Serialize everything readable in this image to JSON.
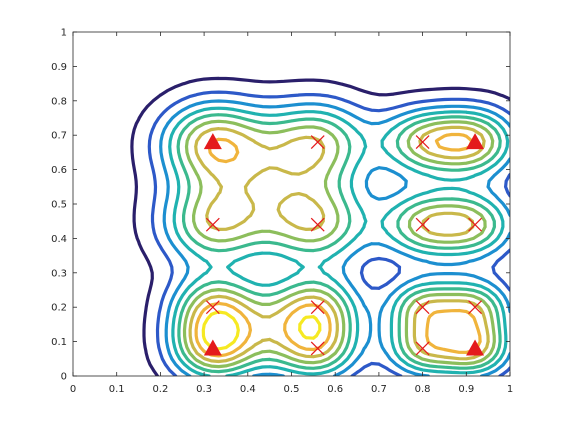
{
  "chart_data": {
    "type": "contour",
    "title": "",
    "xlabel": "",
    "ylabel": "",
    "xlim": [
      0,
      1
    ],
    "ylim": [
      0,
      1
    ],
    "grid": false,
    "xticks": [
      "0",
      "0.1",
      "0.2",
      "0.3",
      "0.4",
      "0.5",
      "0.6",
      "0.7",
      "0.8",
      "0.9",
      "1"
    ],
    "yticks": [
      "0",
      "0.1",
      "0.2",
      "0.3",
      "0.4",
      "0.5",
      "0.6",
      "0.7",
      "0.8",
      "0.9",
      "1"
    ],
    "colormap": [
      "#2a1f6b",
      "#2d59c8",
      "#1c8fd0",
      "#20b2b0",
      "#3bb98e",
      "#8cbe5c",
      "#c9b84a",
      "#f0b43c",
      "#f6e922"
    ],
    "markers": {
      "triangle_color": "#e41a1c",
      "cross_color": "#e41a1c",
      "triangles": [
        {
          "x": 0.32,
          "y": 0.68
        },
        {
          "x": 0.92,
          "y": 0.68
        },
        {
          "x": 0.32,
          "y": 0.08
        },
        {
          "x": 0.92,
          "y": 0.08
        }
      ],
      "crosses": [
        {
          "x": 0.56,
          "y": 0.68
        },
        {
          "x": 0.8,
          "y": 0.68
        },
        {
          "x": 0.32,
          "y": 0.44
        },
        {
          "x": 0.56,
          "y": 0.44
        },
        {
          "x": 0.8,
          "y": 0.44
        },
        {
          "x": 0.92,
          "y": 0.44
        },
        {
          "x": 0.32,
          "y": 0.2
        },
        {
          "x": 0.56,
          "y": 0.2
        },
        {
          "x": 0.8,
          "y": 0.2
        },
        {
          "x": 0.92,
          "y": 0.2
        },
        {
          "x": 0.56,
          "y": 0.08
        },
        {
          "x": 0.8,
          "y": 0.08
        }
      ]
    }
  }
}
